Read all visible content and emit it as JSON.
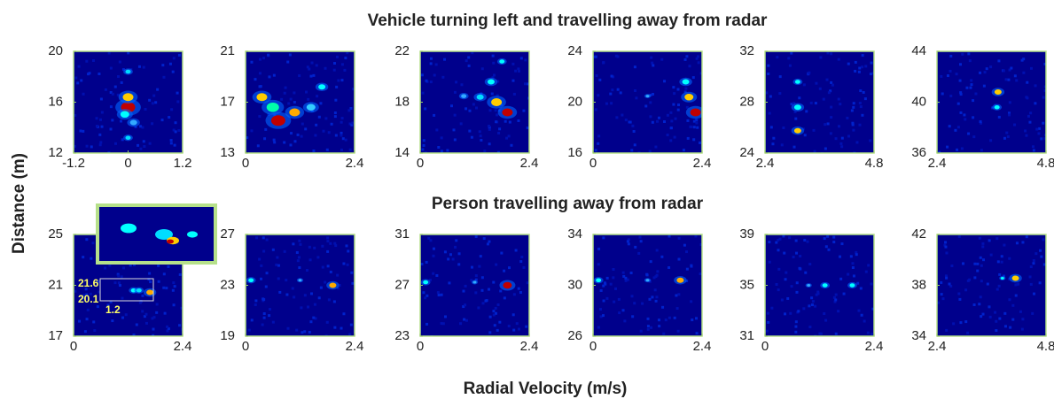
{
  "labels": {
    "ylabel": "Distance (m)",
    "xlabel": "Radial Velocity (m/s)"
  },
  "chart_data": [
    {
      "type": "heatmap",
      "title": "Vehicle turning left and travelling away from radar",
      "xlim": [
        -1.2,
        1.2
      ],
      "xticks": [
        -1.2,
        0,
        1.2
      ],
      "ylim": [
        12,
        20
      ],
      "yticks": [
        12,
        16,
        20
      ]
    },
    {
      "type": "heatmap",
      "xlim": [
        0,
        2.4
      ],
      "xticks": [
        0,
        2.4
      ],
      "ylim": [
        13,
        21
      ],
      "yticks": [
        13,
        17,
        21
      ]
    },
    {
      "type": "heatmap",
      "xlim": [
        0,
        2.4
      ],
      "xticks": [
        0,
        2.4
      ],
      "ylim": [
        14,
        22
      ],
      "yticks": [
        14,
        18,
        22
      ]
    },
    {
      "type": "heatmap",
      "xlim": [
        0,
        2.4
      ],
      "xticks": [
        0,
        2.4
      ],
      "ylim": [
        16,
        24
      ],
      "yticks": [
        16,
        20,
        24
      ]
    },
    {
      "type": "heatmap",
      "xlim": [
        2.4,
        4.8
      ],
      "xticks": [
        2.4,
        4.8
      ],
      "ylim": [
        24,
        32
      ],
      "yticks": [
        24,
        28,
        32
      ]
    },
    {
      "type": "heatmap",
      "xlim": [
        2.4,
        4.8
      ],
      "xticks": [
        2.4,
        4.8
      ],
      "ylim": [
        36,
        44
      ],
      "yticks": [
        36,
        40,
        44
      ]
    },
    {
      "type": "heatmap",
      "title": "Person travelling away from radar",
      "annotations": [
        "21.6",
        "20.1",
        "1.2"
      ],
      "xlim": [
        0,
        2.4
      ],
      "xticks": [
        0,
        2.4
      ],
      "ylim": [
        17,
        25
      ],
      "yticks": [
        17,
        21,
        25
      ]
    },
    {
      "type": "heatmap",
      "xlim": [
        0,
        2.4
      ],
      "xticks": [
        0,
        2.4
      ],
      "ylim": [
        19,
        27
      ],
      "yticks": [
        19,
        23,
        27
      ]
    },
    {
      "type": "heatmap",
      "xlim": [
        0,
        2.4
      ],
      "xticks": [
        0,
        2.4
      ],
      "ylim": [
        23,
        31
      ],
      "yticks": [
        23,
        27,
        31
      ]
    },
    {
      "type": "heatmap",
      "xlim": [
        0,
        2.4
      ],
      "xticks": [
        0,
        2.4
      ],
      "ylim": [
        26,
        34
      ],
      "yticks": [
        26,
        30,
        34
      ]
    },
    {
      "type": "heatmap",
      "xlim": [
        0,
        2.4
      ],
      "xticks": [
        0,
        2.4
      ],
      "ylim": [
        31,
        39
      ],
      "yticks": [
        31,
        35,
        39
      ]
    },
    {
      "type": "heatmap",
      "xlim": [
        2.4,
        4.8
      ],
      "xticks": [
        2.4,
        4.8
      ],
      "ylim": [
        34,
        42
      ],
      "yticks": [
        34,
        38,
        42
      ]
    }
  ]
}
